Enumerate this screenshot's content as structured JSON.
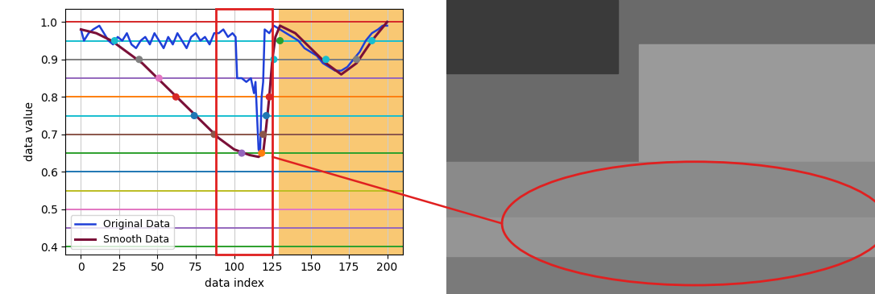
{
  "chart_data": {
    "type": "line",
    "x_label": "data index",
    "y_label": "data value",
    "xlim": [
      -10,
      210
    ],
    "xticks": [
      0,
      25,
      50,
      75,
      100,
      125,
      150,
      175,
      200
    ],
    "ylim": [
      0.38,
      1.035
    ],
    "yticks": [
      0.4,
      0.5,
      0.6,
      0.7,
      0.8,
      0.9,
      1.0
    ],
    "grid": true,
    "legend": "lower left",
    "series": [
      {
        "name": "Original Data",
        "color": "#1f3fd8",
        "line_style": "solid",
        "x": [
          0,
          2,
          5,
          8,
          12,
          15,
          18,
          21,
          24,
          27,
          30,
          33,
          36,
          39,
          42,
          45,
          48,
          51,
          54,
          57,
          60,
          63,
          66,
          69,
          72,
          75,
          78,
          81,
          84,
          87,
          90,
          93,
          96,
          99,
          101,
          102,
          105,
          108,
          111,
          113,
          114,
          116,
          117,
          118,
          119,
          120,
          123,
          126,
          130,
          134,
          138,
          142,
          146,
          150,
          154,
          158,
          162,
          166,
          170,
          174,
          178,
          182,
          186,
          190,
          194,
          197,
          200
        ],
        "values": [
          0.98,
          0.95,
          0.97,
          0.98,
          0.99,
          0.97,
          0.95,
          0.94,
          0.96,
          0.95,
          0.97,
          0.94,
          0.93,
          0.95,
          0.96,
          0.94,
          0.97,
          0.95,
          0.93,
          0.96,
          0.94,
          0.97,
          0.95,
          0.93,
          0.96,
          0.97,
          0.95,
          0.96,
          0.94,
          0.97,
          0.97,
          0.98,
          0.96,
          0.97,
          0.96,
          0.85,
          0.85,
          0.84,
          0.85,
          0.81,
          0.84,
          0.66,
          0.65,
          0.8,
          0.84,
          0.98,
          0.97,
          0.99,
          0.98,
          0.97,
          0.96,
          0.95,
          0.93,
          0.92,
          0.91,
          0.89,
          0.88,
          0.87,
          0.87,
          0.88,
          0.9,
          0.92,
          0.95,
          0.97,
          0.98,
          0.99,
          0.99
        ]
      },
      {
        "name": "Smooth Data",
        "color": "#7a1038",
        "line_style": "solid",
        "x": [
          0,
          10,
          20,
          30,
          40,
          50,
          60,
          70,
          80,
          90,
          100,
          110,
          116,
          119,
          121,
          123,
          125,
          127,
          130,
          140,
          150,
          160,
          170,
          180,
          190,
          200
        ],
        "values": [
          0.98,
          0.97,
          0.95,
          0.92,
          0.89,
          0.85,
          0.81,
          0.77,
          0.73,
          0.69,
          0.66,
          0.645,
          0.64,
          0.65,
          0.72,
          0.8,
          0.9,
          0.96,
          0.99,
          0.97,
          0.93,
          0.89,
          0.86,
          0.89,
          0.95,
          1.0
        ]
      }
    ],
    "levels": [
      0.4,
      0.45,
      0.5,
      0.55,
      0.6,
      0.65,
      0.7,
      0.75,
      0.8,
      0.85,
      0.9,
      0.95,
      1.0
    ],
    "level_colors": [
      "#2ca02c",
      "#9467bd",
      "#e377c2",
      "#bcbd22",
      "#1f77b4",
      "#2ca02c",
      "#8c564b",
      "#17becf",
      "#ff7f0e",
      "#9467bd",
      "#7f7f7f",
      "#17becf",
      "#d62728"
    ],
    "markers": {
      "x": [
        22,
        38,
        51,
        62,
        74,
        87,
        105,
        118,
        119,
        121,
        123,
        126,
        130,
        160,
        180,
        190
      ],
      "values": [
        0.95,
        0.9,
        0.85,
        0.8,
        0.75,
        0.7,
        0.65,
        0.65,
        0.7,
        0.75,
        0.8,
        0.9,
        0.95,
        0.9,
        0.9,
        0.95
      ],
      "colors": [
        "#17becf",
        "#7f7f7f",
        "#e377c2",
        "#d62728",
        "#1f77b4",
        "#8c564b",
        "#9467bd",
        "#ff7f0e",
        "#8c564b",
        "#1f77b4",
        "#d62728",
        "#17becf",
        "#2ca02c",
        "#17becf",
        "#7f7f7f",
        "#17becf"
      ]
    },
    "highlight_x": [
      88,
      125
    ],
    "shaded_x": [
      129,
      210
    ]
  }
}
